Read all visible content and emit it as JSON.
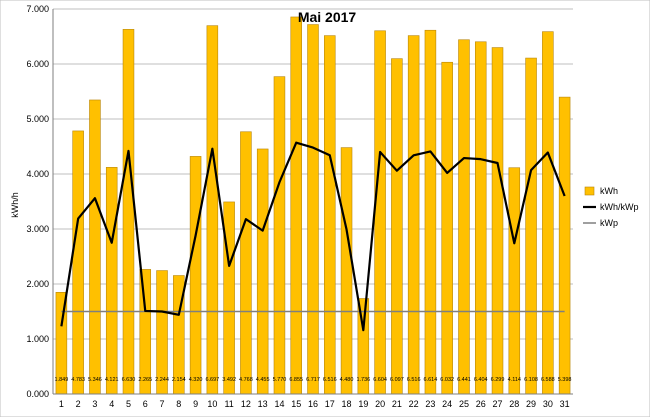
{
  "chart_data": {
    "type": "bar",
    "title": "Mai 2017",
    "ylabel": "kWh/h",
    "xlabel": "",
    "ylim": [
      0,
      7
    ],
    "y_tick_labels": [
      "0.000",
      "1.000",
      "2.000",
      "3.000",
      "4.000",
      "5.000",
      "6.000",
      "7.000"
    ],
    "categories": [
      "1",
      "2",
      "3",
      "4",
      "5",
      "6",
      "7",
      "8",
      "9",
      "10",
      "11",
      "12",
      "13",
      "14",
      "15",
      "16",
      "17",
      "18",
      "19",
      "20",
      "21",
      "22",
      "23",
      "24",
      "25",
      "26",
      "27",
      "28",
      "29",
      "30",
      "31"
    ],
    "grid": true,
    "legend_position": "right",
    "series": [
      {
        "name": "kWh",
        "type": "bar",
        "color": "#FFC000",
        "values": [
          1.849,
          4.783,
          5.346,
          4.121,
          6.63,
          2.265,
          2.244,
          2.154,
          4.32,
          6.697,
          3.492,
          4.768,
          4.455,
          5.77,
          6.855,
          6.717,
          6.516,
          4.48,
          1.736,
          6.604,
          6.097,
          6.516,
          6.614,
          6.032,
          6.441,
          6.404,
          6.299,
          4.114,
          6.108,
          6.588,
          5.398
        ],
        "labels": [
          "1.849",
          "4.783",
          "5.346",
          "4.121",
          "6.630",
          "2.265",
          "2.244",
          "2.154",
          "4.320",
          "6.697",
          "3.492",
          "4.768",
          "4.455",
          "5.770",
          "6.855",
          "6.717",
          "6.516",
          "4.480",
          "1.736",
          "6.604",
          "6.097",
          "6.516",
          "6.614",
          "6.032",
          "6.441",
          "6.404",
          "6.299",
          "4.114",
          "6.108",
          "6.588",
          "5.398"
        ]
      },
      {
        "name": "kWh/kWp",
        "type": "line",
        "color": "#000000",
        "values": [
          1.23,
          3.19,
          3.56,
          2.75,
          4.42,
          1.51,
          1.5,
          1.44,
          2.88,
          4.46,
          2.33,
          3.18,
          2.97,
          3.85,
          4.57,
          4.48,
          4.34,
          2.99,
          1.16,
          4.4,
          4.06,
          4.34,
          4.41,
          4.02,
          4.29,
          4.27,
          4.2,
          2.74,
          4.07,
          4.39,
          3.6
        ]
      },
      {
        "name": "kWp",
        "type": "line",
        "color": "#7f7f7f",
        "values": [
          1.5,
          1.5,
          1.5,
          1.5,
          1.5,
          1.5,
          1.5,
          1.5,
          1.5,
          1.5,
          1.5,
          1.5,
          1.5,
          1.5,
          1.5,
          1.5,
          1.5,
          1.5,
          1.5,
          1.5,
          1.5,
          1.5,
          1.5,
          1.5,
          1.5,
          1.5,
          1.5,
          1.5,
          1.5,
          1.5,
          1.5
        ]
      }
    ]
  }
}
